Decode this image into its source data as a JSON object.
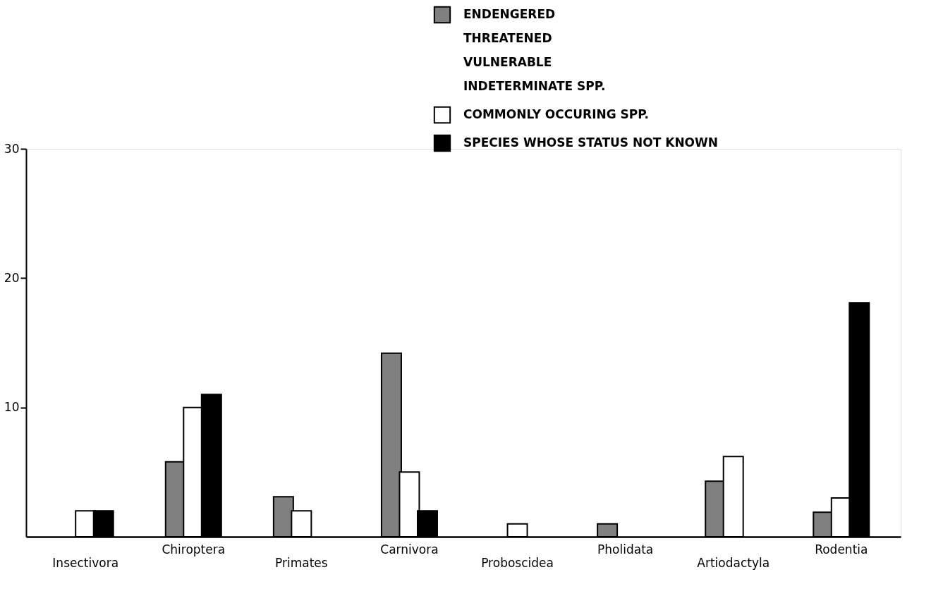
{
  "chart_data": {
    "type": "bar",
    "categories": [
      "Insectivora",
      "Chiroptera",
      "Primates",
      "Carnivora",
      "Proboscidea",
      "Pholidata",
      "Artiodactyla",
      "Rodentia"
    ],
    "series": [
      {
        "name": "ENDENGERED\nTHREATENED\nVULNERABLE\nINDETERMINATE  SPP.",
        "color": "#808080",
        "values": [
          null,
          5.8,
          3.1,
          14.2,
          null,
          1.0,
          4.3,
          1.9
        ]
      },
      {
        "name": "COMMONLY OCCURING SPP.",
        "color": "#ffffff",
        "values": [
          2.0,
          10.0,
          2.0,
          5.0,
          1.0,
          null,
          6.2,
          3.0
        ]
      },
      {
        "name": "SPECIES  WHOSE  STATUS  NOT  KNOWN",
        "color": "#000000",
        "values": [
          2.0,
          11.0,
          null,
          2.0,
          null,
          null,
          null,
          18.1
        ]
      }
    ],
    "ylim": [
      0,
      30
    ],
    "yticks": [
      10,
      20,
      30
    ],
    "grid": false,
    "legend": "top right"
  }
}
